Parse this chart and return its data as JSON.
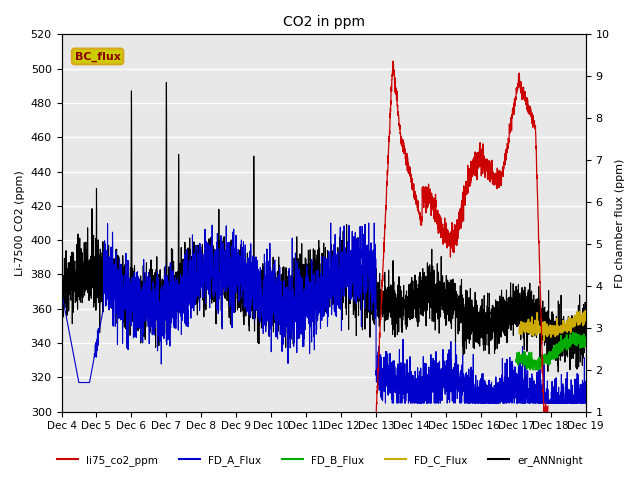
{
  "title": "CO2 in ppm",
  "ylabel_left": "Li-7500 CO2 (ppm)",
  "ylabel_right": "FD chamber flux (ppm)",
  "ylim_left": [
    300,
    520
  ],
  "ylim_right": [
    1.0,
    10.0
  ],
  "yticks_left": [
    300,
    320,
    340,
    360,
    380,
    400,
    420,
    440,
    460,
    480,
    500,
    520
  ],
  "yticks_right": [
    1.0,
    2.0,
    3.0,
    4.0,
    5.0,
    6.0,
    7.0,
    8.0,
    9.0,
    10.0
  ],
  "xtick_labels": [
    "Dec 4",
    "Dec 5",
    "Dec 6",
    "Dec 7",
    "Dec 8",
    "Dec 9",
    "Dec 10",
    "Dec 11",
    "Dec 12",
    "Dec 13",
    "Dec 14",
    "Dec 15",
    "Dec 16",
    "Dec 17",
    "Dec 18",
    "Dec 19"
  ],
  "legend_entries": [
    "li75_co2_ppm",
    "FD_A_Flux",
    "FD_B_Flux",
    "FD_C_Flux",
    "er_ANNnight"
  ],
  "legend_colors": [
    "#cc0000",
    "#0000cc",
    "#00aa00",
    "#ccaa00",
    "#000000"
  ],
  "bc_flux_box_color": "#cccc00",
  "bc_flux_text": "BC_flux",
  "background_color": "#e8e8e8",
  "grid_color": "#ffffff",
  "n_points": 3600,
  "days": 15
}
